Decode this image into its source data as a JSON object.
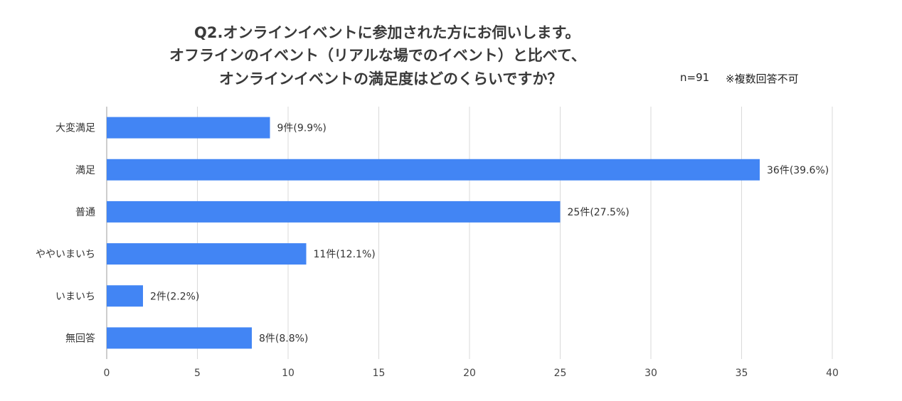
{
  "chart_data": {
    "type": "bar",
    "orientation": "horizontal",
    "title_lines": [
      "Q2.オンラインイベントに参加された方にお伺いします。",
      "オフラインのイベント（リアルな場でのイベント）と比べて、",
      "オンラインイベントの満足度はどのくらいですか？"
    ],
    "sample_note": "n=91",
    "answer_note": "※複数回答不可",
    "categories": [
      "大変満足",
      "満足",
      "普通",
      "ややいまいち",
      "いまいち",
      "無回答"
    ],
    "values": [
      9,
      36,
      25,
      11,
      2,
      8
    ],
    "data_labels": [
      "9件(9.9%)",
      "36件(39.6%)",
      "25件(27.5%)",
      "11件(12.1%)",
      "2件(2.2%)",
      "8件(8.8%)"
    ],
    "x_ticks": [
      0,
      5,
      10,
      15,
      20,
      25,
      30,
      35,
      40
    ],
    "xlim": [
      0,
      40
    ],
    "grid": true,
    "bar_color": "#4285f4",
    "grid_color": "#d9d9d9"
  }
}
